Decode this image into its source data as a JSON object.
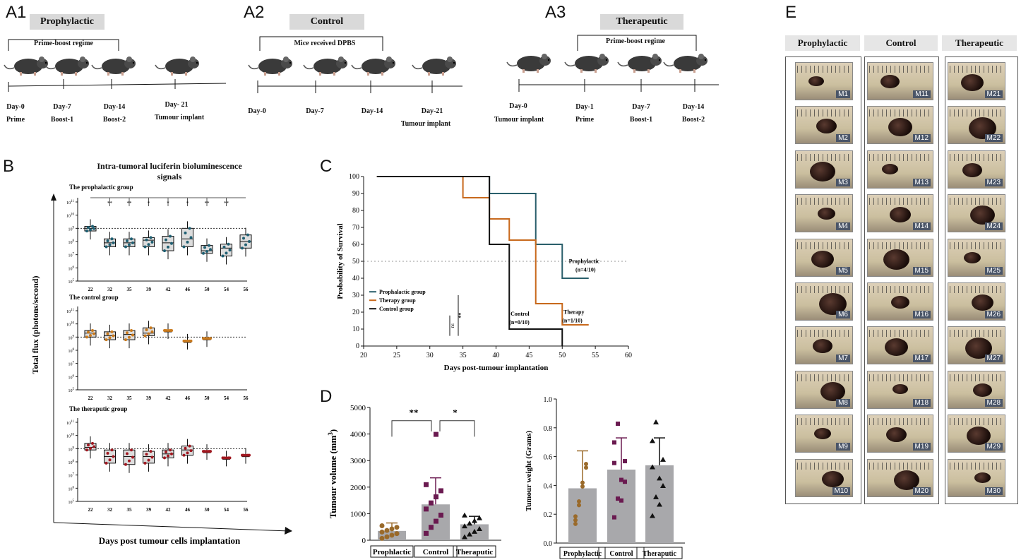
{
  "panels": {
    "a1": "A1",
    "a2": "A2",
    "a3": "A3",
    "b": "B",
    "c": "C",
    "d": "D",
    "e": "E"
  },
  "timeline_a1": {
    "title": "Prophylactic",
    "regime": "Prime-boost regime",
    "days": [
      {
        "d": "Day-0",
        "s": "Prime"
      },
      {
        "d": "Day-7",
        "s": "Boost-1"
      },
      {
        "d": "Day-14",
        "s": "Boost-2"
      },
      {
        "d": "Day- 21",
        "s": "Tumour  implant"
      }
    ]
  },
  "timeline_a2": {
    "title": "Control",
    "regime": "Mice received DPBS",
    "days": [
      {
        "d": "Day-0",
        "s": ""
      },
      {
        "d": "Day-7",
        "s": ""
      },
      {
        "d": "Day-14",
        "s": ""
      },
      {
        "d": "Day-21",
        "s": "Tumour implant"
      }
    ]
  },
  "timeline_a3": {
    "title": "Therapeutic",
    "regime": "Prime-boost regime",
    "days": [
      {
        "d": "Day-0",
        "s": "Tumour implant"
      },
      {
        "d": "Day-1",
        "s": "Prime"
      },
      {
        "d": "Day-7",
        "s": "Boost-1"
      },
      {
        "d": "Day-14",
        "s": "Boost-2"
      }
    ]
  },
  "panel_b": {
    "title": "Intra-tumoral luciferin bioluminescence",
    "title2": "signals",
    "ylabel": "Total flux (photons/second)",
    "xlabel": "Days post tumour cells implantation",
    "groups": [
      {
        "name": "The prophalactic group",
        "color": "#1f5f72",
        "days": [
          "22",
          "32",
          "35",
          "39",
          "42",
          "46",
          "50",
          "54",
          "56"
        ],
        "stars": [
          "**",
          "**",
          "*",
          "*",
          "*",
          "**",
          "**"
        ],
        "box": [
          [
            8.8,
            9.0,
            9.15
          ],
          [
            7.6,
            7.9,
            8.2
          ],
          [
            7.6,
            7.9,
            8.2
          ],
          [
            7.6,
            8.1,
            8.3
          ],
          [
            7.3,
            7.9,
            8.4
          ],
          [
            7.6,
            8.2,
            9.0
          ],
          [
            7.1,
            7.3,
            7.7
          ],
          [
            6.9,
            7.5,
            7.8
          ],
          [
            7.5,
            8.0,
            8.5
          ]
        ]
      },
      {
        "name": "The control group",
        "color": "#c97a1e",
        "days": [
          "22",
          "32",
          "35",
          "39",
          "42",
          "46",
          "50",
          "54",
          "56"
        ],
        "box": [
          [
            9.0,
            9.3,
            9.5
          ],
          [
            8.8,
            9.1,
            9.4
          ],
          [
            8.8,
            9.2,
            9.5
          ],
          [
            9.1,
            9.3,
            9.7
          ],
          [
            9.5,
            9.5,
            9.5
          ],
          [
            8.7,
            8.7,
            8.7
          ],
          [
            8.9,
            8.9,
            8.9
          ],
          null,
          null
        ]
      },
      {
        "name": "The theraputic group",
        "color": "#a01820",
        "days": [
          "22",
          "32",
          "35",
          "39",
          "42",
          "46",
          "50",
          "54",
          "56"
        ],
        "box": [
          [
            8.9,
            9.1,
            9.4
          ],
          [
            7.9,
            8.4,
            8.9
          ],
          [
            7.8,
            8.4,
            8.9
          ],
          [
            7.9,
            8.4,
            8.8
          ],
          [
            8.3,
            8.6,
            8.9
          ],
          [
            8.5,
            8.9,
            9.2
          ],
          [
            8.8,
            8.8,
            8.8
          ],
          [
            8.3,
            8.3,
            8.3
          ],
          [
            8.5,
            8.5,
            8.5
          ]
        ]
      }
    ],
    "tick_exps": [
      "5",
      "6",
      "7",
      "8",
      "9",
      "10",
      "11"
    ]
  },
  "panel_c": {
    "ylabel": "Probability of Survival",
    "xlabel": "Days post-tumour implantation",
    "xticks": [
      "20",
      "25",
      "30",
      "35",
      "40",
      "45",
      "50",
      "55",
      "60"
    ],
    "yticks": [
      "0",
      "10",
      "20",
      "30",
      "40",
      "50",
      "60",
      "70",
      "80",
      "90",
      "100"
    ],
    "legend": [
      "Prophalactic group",
      "Therapy group",
      "Control group"
    ],
    "sig_ns": "ns",
    "sig_star": "**",
    "ann_prophy": [
      "Prophylactic",
      "(n=4/10)"
    ],
    "ann_therapy": [
      "Therapy",
      "(n=1/10)"
    ],
    "ann_control": [
      "Control",
      "(n=0/10)"
    ],
    "colors": {
      "prophy": "#2a5f6b",
      "therapy": "#c8691c",
      "control": "#111111"
    }
  },
  "chart_data": [
    {
      "type": "line",
      "title": "Survival",
      "xlabel": "Days post-tumour implantation",
      "ylabel": "Probability of Survival",
      "xlim": [
        20,
        60
      ],
      "ylim": [
        0,
        100
      ],
      "series": [
        {
          "name": "Prophalactic group",
          "x": [
            22,
            39,
            39,
            46,
            46,
            50,
            50,
            54
          ],
          "y": [
            100,
            100,
            90,
            90,
            60,
            60,
            40,
            40
          ]
        },
        {
          "name": "Therapy group",
          "x": [
            22,
            35,
            35,
            39,
            39,
            42,
            42,
            46,
            46,
            50,
            50,
            54
          ],
          "y": [
            100,
            100,
            87.5,
            87.5,
            75,
            75,
            62.5,
            62.5,
            25,
            25,
            12.5,
            12.5
          ]
        },
        {
          "name": "Control group",
          "x": [
            22,
            39,
            39,
            42,
            42,
            50,
            50
          ],
          "y": [
            100,
            100,
            60,
            60,
            10,
            10,
            0
          ]
        }
      ]
    },
    {
      "type": "bar",
      "title": "Tumour volume",
      "categories": [
        "Prophlactic",
        "Control",
        "Theraputic"
      ],
      "values": [
        350,
        1350,
        600
      ],
      "ylabel": "Tumour volume (mm3)",
      "ylim": [
        0,
        5000
      ]
    },
    {
      "type": "bar",
      "title": "Tumour weight",
      "categories": [
        "Prophylactic",
        "Control",
        "Theraputic"
      ],
      "values": [
        0.38,
        0.51,
        0.54
      ],
      "ylabel": "Tumour weight (Grams)",
      "ylim": [
        0,
        1.0
      ]
    }
  ],
  "panel_d": {
    "vol_ylabel_a": "Tumour volume (mm",
    "vol_ylabel_sup": "3",
    "vol_ylabel_b": ")",
    "vol_yticks": [
      "0",
      "1000",
      "2000",
      "3000",
      "4000",
      "5000"
    ],
    "vol_cats": [
      "Prophlactic",
      "Control",
      "Theraputic"
    ],
    "vol_vals": [
      350,
      1350,
      600
    ],
    "vol_err": [
      300,
      1000,
      300
    ],
    "vol_sig1": "**",
    "vol_sig2": "*",
    "wt_ylabel": "Tumour weight (Grams)",
    "wt_yticks": [
      "0.0",
      "0.2",
      "0.4",
      "0.6",
      "0.8",
      "1.0"
    ],
    "wt_cats": [
      "Prophylactic",
      "Control",
      "Theraputic"
    ],
    "wt_vals": [
      0.38,
      0.51,
      0.54
    ],
    "wt_err": [
      0.26,
      0.22,
      0.19
    ],
    "colors": [
      "#9a6a2a",
      "#6a1a50",
      "#111111"
    ]
  },
  "panel_e": {
    "headers": [
      "Prophylactic",
      "Control",
      "Therapeutic"
    ],
    "cols": [
      [
        "M1",
        "M2",
        "M3",
        "M4",
        "M5",
        "M6",
        "M7",
        "M8",
        "M9",
        "M10"
      ],
      [
        "M11",
        "M12",
        "M13",
        "M14",
        "M15",
        "M16",
        "M17",
        "M18",
        "M19",
        "M20"
      ],
      [
        "M21",
        "M22",
        "M23",
        "M24",
        "M25",
        "M26",
        "M27",
        "M28",
        "M29",
        "M30"
      ]
    ]
  }
}
